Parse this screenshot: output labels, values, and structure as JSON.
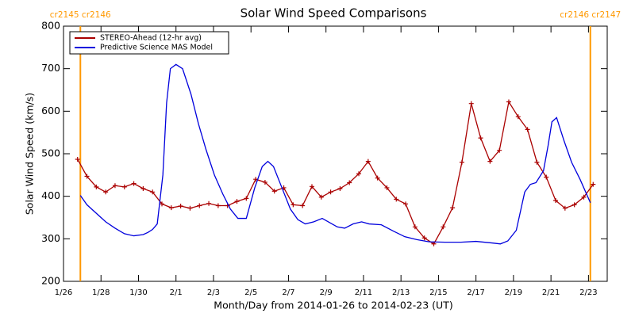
{
  "chart_data": {
    "type": "line",
    "title": "Solar Wind Speed Comparisons",
    "xlabel": "Month/Day from 2014-01-26 to 2014-02-23 (UT)",
    "ylabel": "Solar Wind Speed (km/s)",
    "xlim": [
      0,
      29
    ],
    "ylim": [
      200,
      800
    ],
    "yticks": [
      200,
      300,
      400,
      500,
      600,
      700,
      800
    ],
    "xticks": [
      {
        "value": 0,
        "label": "1/26"
      },
      {
        "value": 2,
        "label": "1/28"
      },
      {
        "value": 4,
        "label": "1/30"
      },
      {
        "value": 6,
        "label": "2/1"
      },
      {
        "value": 8,
        "label": "2/3"
      },
      {
        "value": 10,
        "label": "2/5"
      },
      {
        "value": 12,
        "label": "2/7"
      },
      {
        "value": 14,
        "label": "2/9"
      },
      {
        "value": 16,
        "label": "2/11"
      },
      {
        "value": 18,
        "label": "2/13"
      },
      {
        "value": 20,
        "label": "2/15"
      },
      {
        "value": 22,
        "label": "2/17"
      },
      {
        "value": 24,
        "label": "2/19"
      },
      {
        "value": 26,
        "label": "2/21"
      },
      {
        "value": 28,
        "label": "2/23"
      }
    ],
    "vlines": [
      {
        "x": 0.9,
        "label": "cr2145 cr2146",
        "color": "#ff9900"
      },
      {
        "x": 28.1,
        "label": "cr2146 cr2147",
        "color": "#ff9900"
      }
    ],
    "legend": "upper left",
    "series": [
      {
        "name": "STEREO-Ahead (12-hr avg)",
        "color": "#aa0000",
        "marker": "+",
        "x": [
          0.75,
          1.25,
          1.75,
          2.25,
          2.75,
          3.25,
          3.75,
          4.25,
          4.75,
          5.25,
          5.75,
          6.25,
          6.75,
          7.25,
          7.75,
          8.25,
          8.75,
          9.25,
          9.75,
          10.25,
          10.75,
          11.25,
          11.75,
          12.25,
          12.75,
          13.25,
          13.75,
          14.25,
          14.75,
          15.25,
          15.75,
          16.25,
          16.75,
          17.25,
          17.75,
          18.25,
          18.75,
          19.25,
          19.75,
          20.25,
          20.75,
          21.25,
          21.75,
          22.25,
          22.75,
          23.25,
          23.75,
          24.25,
          24.75,
          25.25,
          25.75,
          26.25,
          26.75,
          27.25,
          27.75,
          28.25
        ],
        "values": [
          487,
          447,
          422,
          410,
          425,
          422,
          430,
          418,
          410,
          382,
          373,
          377,
          372,
          378,
          383,
          378,
          378,
          388,
          395,
          440,
          433,
          412,
          420,
          380,
          378,
          423,
          398,
          410,
          418,
          432,
          453,
          482,
          443,
          420,
          393,
          382,
          328,
          302,
          288,
          328,
          373,
          480,
          618,
          537,
          482,
          508,
          622,
          587,
          557,
          480,
          445,
          390,
          372,
          380,
          398,
          428
        ]
      },
      {
        "name": "Predictive Science MAS Model",
        "color": "#0000dd",
        "x": [
          0.9,
          1.25,
          1.75,
          2.25,
          2.75,
          3.25,
          3.75,
          4.25,
          4.5,
          4.75,
          5.0,
          5.3,
          5.5,
          5.7,
          6.0,
          6.35,
          6.8,
          7.2,
          7.6,
          8.05,
          8.5,
          8.9,
          9.3,
          9.75,
          10.2,
          10.6,
          10.9,
          11.2,
          11.65,
          12.1,
          12.5,
          12.9,
          13.35,
          13.8,
          14.2,
          14.6,
          15.0,
          15.45,
          15.9,
          16.3,
          16.95,
          17.6,
          18.2,
          18.85,
          19.5,
          20.35,
          21.2,
          22.0,
          22.9,
          23.3,
          23.7,
          24.15,
          24.6,
          24.9,
          25.2,
          25.6,
          25.85,
          26.05,
          26.3,
          26.7,
          27.1,
          27.55,
          28.1
        ],
        "values": [
          402,
          380,
          360,
          340,
          325,
          312,
          307,
          310,
          315,
          322,
          335,
          450,
          620,
          700,
          710,
          700,
          640,
          570,
          510,
          450,
          405,
          370,
          348,
          348,
          420,
          470,
          482,
          470,
          420,
          370,
          345,
          335,
          340,
          348,
          338,
          328,
          325,
          335,
          340,
          335,
          333,
          318,
          305,
          298,
          293,
          292,
          292,
          294,
          290,
          288,
          295,
          320,
          410,
          428,
          432,
          460,
          520,
          575,
          585,
          530,
          480,
          440,
          385
        ]
      }
    ]
  }
}
